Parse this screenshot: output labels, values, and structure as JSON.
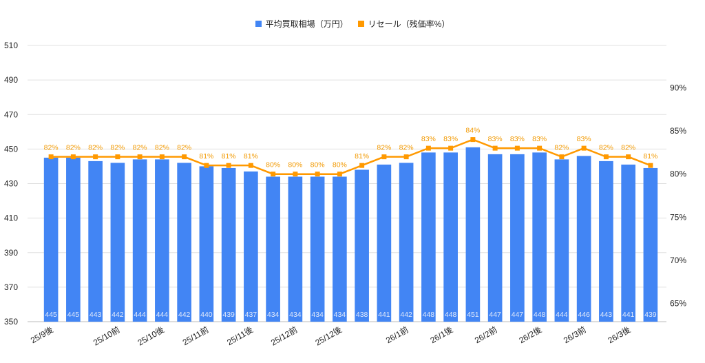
{
  "chart_data": {
    "type": "bar+line",
    "title": "",
    "legend_position": "top",
    "grid": true,
    "categories": [
      "25/9後",
      "",
      "",
      "25/10前",
      "",
      "25/10後",
      "",
      "25/11前",
      "",
      "25/11後",
      "",
      "25/12前",
      "",
      "25/12後",
      "",
      "",
      "26/1前",
      "",
      "26/1後",
      "",
      "26/2前",
      "",
      "26/2後",
      "",
      "26/3前",
      "",
      "26/3後",
      ""
    ],
    "series": [
      {
        "name": "平均買取相場（万円）",
        "type": "bar",
        "axis": "left",
        "color": "#4285f4",
        "values": [
          445,
          445,
          443,
          442,
          444,
          444,
          442,
          440,
          439,
          437,
          434,
          434,
          434,
          434,
          438,
          441,
          442,
          448,
          448,
          451,
          447,
          447,
          448,
          444,
          446,
          443,
          441,
          439
        ]
      },
      {
        "name": "リセール（残価率%）",
        "type": "line",
        "axis": "right",
        "color": "#ff9900",
        "values": [
          82,
          82,
          82,
          82,
          82,
          82,
          82,
          81,
          81,
          81,
          80,
          80,
          80,
          80,
          81,
          82,
          82,
          83,
          83,
          84,
          83,
          83,
          83,
          82,
          83,
          82,
          82,
          81
        ]
      }
    ],
    "left_axis": {
      "ylim": [
        350,
        510
      ],
      "ticks": [
        350,
        370,
        390,
        410,
        430,
        450,
        470,
        490,
        510
      ]
    },
    "right_axis": {
      "ylim": [
        62.9,
        94.9
      ],
      "ticks": [
        65,
        70,
        75,
        80,
        85,
        90
      ],
      "tick_suffix": "%"
    }
  }
}
